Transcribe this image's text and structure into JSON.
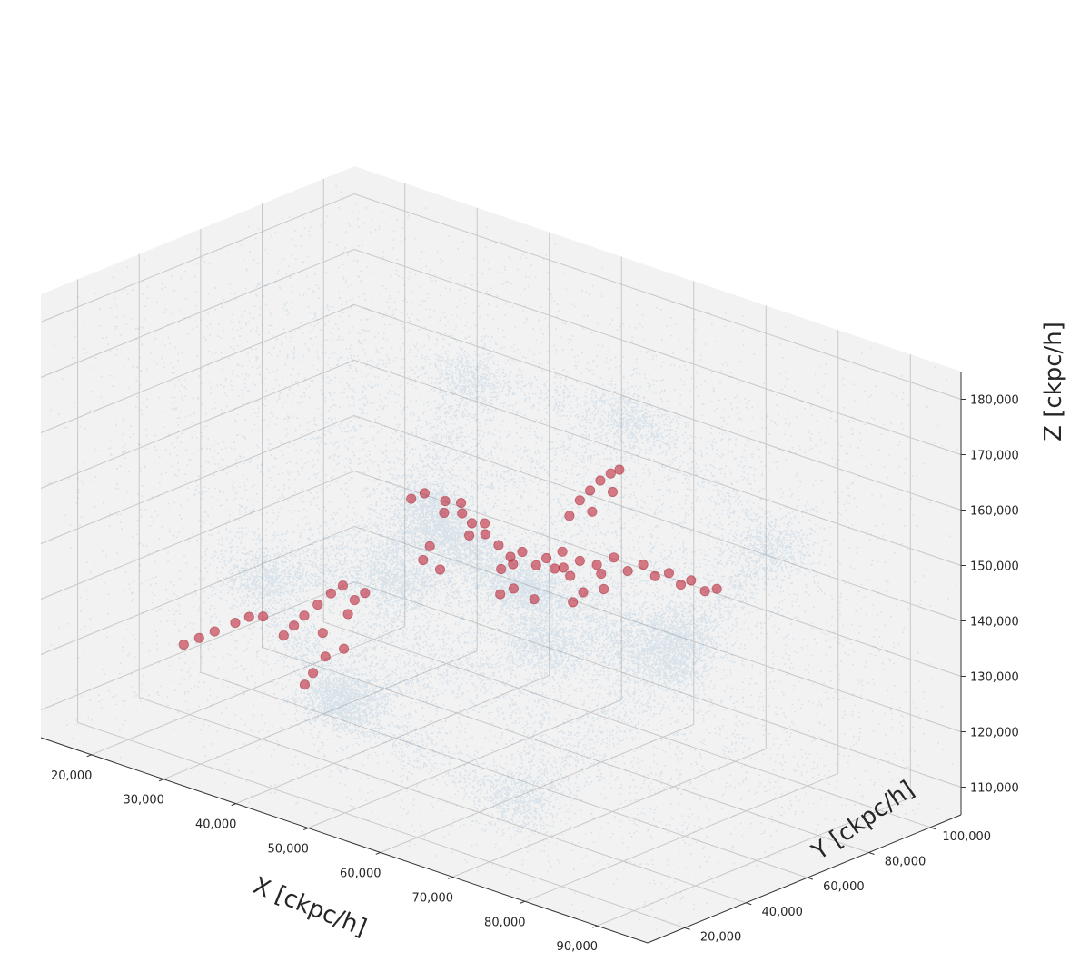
{
  "chart_data": {
    "type": "scatter",
    "projection": "3d",
    "grid": true,
    "pane_color": "#f2f2f2",
    "grid_color": "#c8c8c8",
    "axes": {
      "x": {
        "label": "X [ckpc/h]",
        "ticks": [
          "20,000",
          "30,000",
          "40,000",
          "50,000",
          "60,000",
          "70,000",
          "80,000",
          "90,000"
        ],
        "tick_values": [
          20000,
          30000,
          40000,
          50000,
          60000,
          70000,
          80000,
          90000
        ],
        "range": [
          13000,
          97000
        ]
      },
      "y": {
        "label": "Y [ckpc/h]",
        "ticks": [
          "20,000",
          "40,000",
          "60,000",
          "80,000",
          "100,000"
        ],
        "tick_values": [
          20000,
          40000,
          60000,
          80000,
          100000
        ],
        "range": [
          8000,
          110000
        ]
      },
      "z": {
        "label": "Z [ckpc/h]",
        "ticks": [
          "110,000",
          "120,000",
          "130,000",
          "140,000",
          "150,000",
          "160,000",
          "170,000",
          "180,000"
        ],
        "tick_values": [
          110000,
          120000,
          130000,
          140000,
          150000,
          160000,
          170000,
          180000
        ],
        "range": [
          105000,
          185000
        ]
      }
    },
    "series": [
      {
        "color": "#1f77b4",
        "marker": "dot",
        "alpha": 0.12,
        "description_of_structure": "dense cosmic-web filaments of faint dark-matter particles filling the box",
        "anchor_points": [
          [
            40000,
            70000,
            145000
          ],
          [
            52000,
            48000,
            150000
          ],
          [
            58000,
            60000,
            140000
          ],
          [
            70000,
            38000,
            140000
          ],
          [
            30000,
            80000,
            125000
          ],
          [
            78000,
            60000,
            135000
          ],
          [
            44000,
            30000,
            120000
          ],
          [
            84000,
            80000,
            155000
          ],
          [
            60000,
            90000,
            165000
          ],
          [
            25000,
            50000,
            130000
          ],
          [
            72000,
            25000,
            115000
          ],
          [
            50000,
            20000,
            125000
          ],
          [
            88000,
            40000,
            150000
          ],
          [
            35000,
            95000,
            160000
          ]
        ]
      },
      {
        "color": "#c0273a",
        "marker": "circle",
        "alpha": 0.6,
        "points": [
          [
            46000,
            62000,
            150000
          ],
          [
            47500,
            64000,
            148000
          ],
          [
            48000,
            66000,
            146000
          ],
          [
            49000,
            68000,
            144000
          ],
          [
            50000,
            70000,
            142000
          ],
          [
            51000,
            71500,
            140000
          ],
          [
            52000,
            73000,
            141000
          ],
          [
            53500,
            74000,
            139000
          ],
          [
            54500,
            75000,
            140500
          ],
          [
            55000,
            76500,
            138500
          ],
          [
            56000,
            77000,
            139000
          ],
          [
            56500,
            78000,
            137500
          ],
          [
            45000,
            64000,
            147000
          ],
          [
            46500,
            66000,
            149000
          ],
          [
            47000,
            67500,
            143000
          ],
          [
            48500,
            69000,
            145500
          ],
          [
            44000,
            60000,
            151000
          ],
          [
            43000,
            58000,
            150000
          ],
          [
            49500,
            72000,
            137000
          ],
          [
            50500,
            73500,
            138000
          ],
          [
            55000,
            79000,
            141000
          ],
          [
            57000,
            80000,
            140000
          ],
          [
            58500,
            82000,
            139500
          ],
          [
            60000,
            84000,
            141000
          ],
          [
            61500,
            85000,
            139000
          ],
          [
            63000,
            86500,
            140500
          ],
          [
            64000,
            88000,
            138500
          ],
          [
            65500,
            89000,
            139500
          ],
          [
            66500,
            90500,
            137500
          ],
          [
            67500,
            91500,
            138500
          ],
          [
            69000,
            92500,
            137000
          ],
          [
            70000,
            94000,
            137500
          ],
          [
            53000,
            86000,
            145000
          ],
          [
            54000,
            87000,
            148000
          ],
          [
            55000,
            88000,
            150000
          ],
          [
            56000,
            89000,
            152000
          ],
          [
            57000,
            90000,
            153500
          ],
          [
            58000,
            90500,
            154500
          ],
          [
            55500,
            87500,
            146500
          ],
          [
            57500,
            89500,
            150500
          ],
          [
            37000,
            46000,
            133000
          ],
          [
            36000,
            44000,
            131000
          ],
          [
            38000,
            47500,
            134500
          ],
          [
            39000,
            49000,
            132000
          ],
          [
            40000,
            50000,
            133500
          ],
          [
            35000,
            42000,
            129000
          ],
          [
            34000,
            41000,
            127000
          ],
          [
            33000,
            40000,
            125000
          ],
          [
            36500,
            44500,
            126000
          ],
          [
            38500,
            48000,
            129500
          ],
          [
            31000,
            38000,
            128000
          ],
          [
            29500,
            37000,
            127500
          ],
          [
            28000,
            36000,
            126000
          ],
          [
            26000,
            34000,
            124000
          ],
          [
            24500,
            32500,
            122500
          ],
          [
            23000,
            31000,
            121000
          ],
          [
            39000,
            45500,
            124000
          ],
          [
            37500,
            43000,
            122500
          ],
          [
            36000,
            42500,
            119000
          ],
          [
            35500,
            41000,
            117000
          ],
          [
            60000,
            74000,
            137000
          ],
          [
            59000,
            73000,
            135000
          ],
          [
            62000,
            76000,
            138000
          ],
          [
            61000,
            77500,
            140000
          ],
          [
            52500,
            69000,
            135500
          ],
          [
            51500,
            67000,
            134500
          ],
          [
            54500,
            71000,
            134000
          ],
          [
            46000,
            57000,
            143000
          ],
          [
            45500,
            56000,
            140500
          ],
          [
            47000,
            58000,
            139000
          ]
        ]
      }
    ]
  }
}
